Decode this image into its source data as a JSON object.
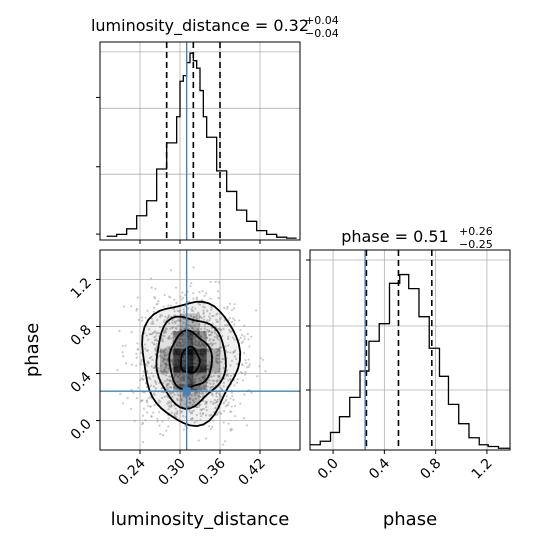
{
  "chart_data": {
    "type": "corner",
    "parameters": [
      "luminosity_distance",
      "phase"
    ],
    "truth": {
      "luminosity_distance": 0.31,
      "phase": 0.25
    },
    "panels": {
      "luminosity_distance": {
        "type": "histogram",
        "title": {
          "prefix": "luminosity_distance = 0.32",
          "plus": "+0.04",
          "minus": "−0.04"
        },
        "xlim": [
          0.18,
          0.48
        ],
        "bin_edges": [
          0.19,
          0.205,
          0.22,
          0.235,
          0.25,
          0.265,
          0.28,
          0.295,
          0.3,
          0.305,
          0.31,
          0.315,
          0.32,
          0.325,
          0.33,
          0.335,
          0.34,
          0.355,
          0.37,
          0.385,
          0.4,
          0.415,
          0.43,
          0.445,
          0.46,
          0.475
        ],
        "counts": [
          0.02,
          0.03,
          0.06,
          0.13,
          0.21,
          0.38,
          0.52,
          0.66,
          0.85,
          0.88,
          0.95,
          1.0,
          0.96,
          0.92,
          0.8,
          0.66,
          0.55,
          0.37,
          0.26,
          0.16,
          0.1,
          0.05,
          0.03,
          0.015,
          0.01
        ],
        "quantiles": [
          0.28,
          0.32,
          0.36
        ]
      },
      "phase": {
        "type": "histogram",
        "title": {
          "prefix": "phase = 0.51",
          "plus": "+0.26",
          "minus": "−0.25"
        },
        "xlim": [
          -0.18,
          1.38
        ],
        "bin_edges": [
          -0.18,
          -0.1,
          -0.02,
          0.05,
          0.13,
          0.21,
          0.28,
          0.36,
          0.44,
          0.52,
          0.59,
          0.67,
          0.75,
          0.83,
          0.9,
          0.98,
          1.06,
          1.14,
          1.21,
          1.29,
          1.38
        ],
        "counts": [
          0.03,
          0.05,
          0.1,
          0.19,
          0.3,
          0.45,
          0.62,
          0.72,
          0.95,
          1.0,
          0.92,
          0.76,
          0.58,
          0.42,
          0.26,
          0.15,
          0.07,
          0.03,
          0.02,
          0.01
        ],
        "quantiles": [
          0.26,
          0.51,
          0.77
        ]
      },
      "joint": {
        "type": "2d-density",
        "xlim": [
          0.18,
          0.48
        ],
        "ylim": [
          -0.25,
          1.45
        ],
        "center": [
          0.315,
          0.51
        ],
        "contour_levels": [
          {
            "rx": 0.072,
            "ry": 0.52
          },
          {
            "rx": 0.052,
            "ry": 0.38
          },
          {
            "rx": 0.032,
            "ry": 0.24
          },
          {
            "rx": 0.014,
            "ry": 0.11
          }
        ]
      }
    },
    "xticks": {
      "luminosity_distance": {
        "values": [
          0.24,
          0.3,
          0.36,
          0.42
        ],
        "labels": [
          "0.24",
          "0.30",
          "0.36",
          "0.42"
        ]
      },
      "phase": {
        "values": [
          0.0,
          0.4,
          0.8,
          1.2
        ],
        "labels": [
          "0.0",
          "0.4",
          "0.8",
          "1.2"
        ]
      }
    },
    "yticks": {
      "phase": {
        "values": [
          0.0,
          0.4,
          0.8,
          1.2
        ],
        "labels": [
          "0.0",
          "0.4",
          "0.8",
          "1.2"
        ]
      }
    },
    "xlabels": [
      "luminosity_distance",
      "phase"
    ],
    "ylabel": "phase",
    "colors": {
      "truth": "#4682b4",
      "hist": "#000000",
      "grid": "#b0b0b0",
      "points": "#9e9e9e"
    }
  }
}
